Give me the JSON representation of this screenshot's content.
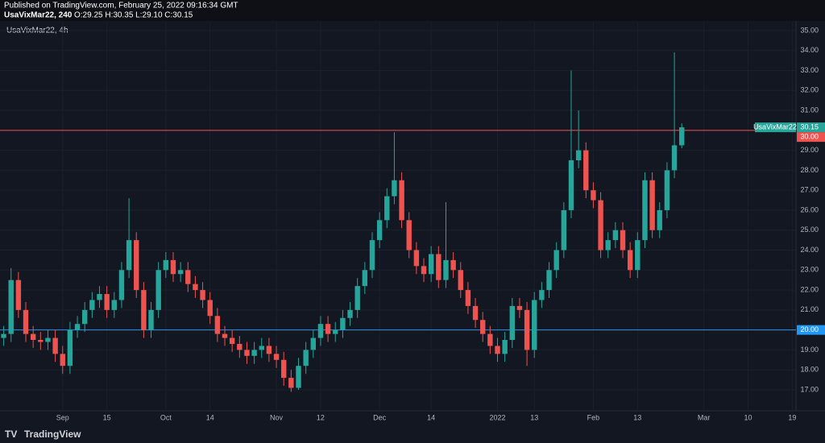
{
  "header": {
    "published": "Published on TradingView.com, February 25, 2022 09:16:34 GMT",
    "symbol": "UsaVixMar22, 240",
    "ohlc": "O:29.25 H:30.35 L:29.10 C:30.15"
  },
  "brand": "TradingView",
  "chart_data": {
    "type": "candlestick",
    "title": "UsaVixMar22, 4h",
    "categories": [
      null,
      null,
      null,
      null,
      null,
      null,
      null,
      null,
      "Sep",
      null,
      null,
      null,
      null,
      null,
      "15",
      null,
      null,
      null,
      null,
      null,
      null,
      null,
      "Oct",
      null,
      null,
      null,
      null,
      null,
      "14",
      null,
      null,
      null,
      null,
      null,
      null,
      null,
      null,
      "Nov",
      null,
      null,
      null,
      null,
      null,
      "12",
      null,
      null,
      null,
      null,
      null,
      null,
      null,
      "Dec",
      null,
      null,
      null,
      null,
      null,
      null,
      "14",
      null,
      null,
      null,
      null,
      null,
      null,
      null,
      null,
      "2022",
      null,
      null,
      null,
      null,
      "13",
      null,
      null,
      null,
      null,
      null,
      null,
      null,
      "Feb",
      null,
      null,
      null,
      null,
      null,
      "13",
      null,
      null,
      null,
      null,
      null,
      null,
      null,
      null,
      "Mar",
      null,
      null,
      null,
      null,
      null,
      "10",
      null,
      null,
      null,
      null,
      null,
      "19"
    ],
    "series": [
      {
        "name": "open",
        "values": [
          19.6,
          19.8,
          22.5,
          21.0,
          19.8,
          19.5,
          19.4,
          19.6,
          18.8,
          18.2,
          20.0,
          20.3,
          21.0,
          21.5,
          21.8,
          21.0,
          21.5,
          23.0,
          24.5,
          22.0,
          20.0,
          21.0,
          23.0,
          23.5,
          22.8,
          23.0,
          22.3,
          22.0,
          21.5,
          20.7,
          19.8,
          19.6,
          19.3,
          19.0,
          18.7,
          19.0,
          19.2,
          18.8,
          18.5,
          17.6,
          17.1,
          18.2,
          19.0,
          19.6,
          20.3,
          19.8,
          20.0,
          20.6,
          21.0,
          22.2,
          23.0,
          24.5,
          25.5,
          26.7,
          27.5,
          25.5,
          24.0,
          23.2,
          22.8,
          23.8,
          22.5,
          23.5,
          23.0,
          22.0,
          21.2,
          20.5,
          19.8,
          19.2,
          18.8,
          19.5,
          21.2,
          21.0,
          19.0,
          21.5,
          22.0,
          23.0,
          24.0,
          26.0,
          28.5,
          29.0,
          27.0,
          26.5,
          24.0,
          24.5,
          25.0,
          24.0,
          23.0,
          24.5,
          27.5,
          25.0,
          26.0,
          28.0,
          29.25,
          null,
          null,
          null,
          null,
          null,
          null,
          null,
          null,
          null,
          null,
          null,
          null,
          null,
          null,
          null
        ]
      },
      {
        "name": "high",
        "values": [
          20.2,
          23.1,
          22.9,
          21.4,
          20.2,
          19.9,
          20.0,
          20.0,
          19.2,
          20.4,
          20.7,
          21.4,
          21.9,
          22.2,
          22.2,
          21.9,
          23.4,
          26.6,
          24.9,
          22.4,
          21.4,
          23.4,
          23.9,
          23.9,
          23.4,
          23.4,
          22.7,
          22.4,
          21.9,
          21.1,
          20.2,
          20.0,
          19.7,
          19.4,
          19.4,
          19.6,
          19.6,
          19.2,
          18.9,
          18.0,
          18.6,
          19.4,
          20.0,
          20.7,
          20.7,
          20.4,
          21.0,
          21.4,
          22.6,
          23.4,
          24.9,
          25.9,
          27.1,
          29.9,
          27.9,
          25.9,
          24.4,
          23.6,
          24.2,
          24.2,
          26.4,
          23.9,
          23.4,
          22.4,
          21.6,
          20.9,
          20.2,
          19.6,
          19.9,
          21.6,
          21.6,
          21.4,
          21.9,
          22.4,
          23.4,
          24.4,
          26.4,
          33.0,
          31.0,
          29.4,
          27.4,
          26.9,
          24.9,
          25.4,
          25.4,
          24.4,
          24.9,
          27.9,
          27.9,
          26.4,
          28.4,
          33.9,
          30.35,
          null,
          null,
          null,
          null,
          null,
          null,
          null,
          null,
          null,
          null,
          null,
          null,
          null,
          null,
          null
        ]
      },
      {
        "name": "low",
        "values": [
          19.2,
          19.4,
          20.6,
          19.4,
          19.1,
          19.0,
          19.0,
          18.4,
          17.8,
          17.8,
          19.6,
          19.9,
          20.6,
          21.1,
          20.6,
          20.6,
          21.1,
          22.6,
          21.6,
          19.6,
          19.6,
          20.6,
          22.6,
          22.4,
          22.4,
          21.9,
          21.6,
          21.1,
          20.3,
          19.4,
          19.2,
          18.9,
          18.6,
          18.3,
          18.3,
          18.6,
          18.4,
          18.1,
          17.2,
          16.9,
          17.0,
          17.8,
          18.6,
          19.2,
          19.4,
          19.4,
          19.6,
          20.2,
          20.6,
          21.8,
          22.6,
          24.1,
          25.1,
          26.3,
          25.1,
          23.6,
          22.8,
          22.4,
          22.4,
          22.1,
          22.1,
          22.6,
          21.6,
          20.8,
          20.1,
          19.4,
          18.8,
          18.4,
          18.4,
          19.1,
          20.6,
          18.2,
          18.6,
          21.1,
          21.6,
          22.6,
          23.6,
          25.6,
          28.1,
          26.6,
          26.1,
          23.6,
          23.6,
          24.1,
          23.6,
          22.6,
          22.6,
          24.1,
          24.6,
          24.6,
          25.6,
          27.6,
          29.1,
          null,
          null,
          null,
          null,
          null,
          null,
          null,
          null,
          null,
          null,
          null,
          null,
          null,
          null,
          null
        ]
      },
      {
        "name": "close",
        "values": [
          19.8,
          22.5,
          21.0,
          19.8,
          19.5,
          19.4,
          19.6,
          18.8,
          18.2,
          20.0,
          20.3,
          21.0,
          21.5,
          21.8,
          21.0,
          21.5,
          23.0,
          24.5,
          22.0,
          20.0,
          21.0,
          23.0,
          23.5,
          22.8,
          23.0,
          22.3,
          22.0,
          21.5,
          20.7,
          19.8,
          19.6,
          19.3,
          19.0,
          18.7,
          19.0,
          19.2,
          18.8,
          18.5,
          17.6,
          17.1,
          18.2,
          19.0,
          19.6,
          20.3,
          19.8,
          20.0,
          20.6,
          21.0,
          22.2,
          23.0,
          24.5,
          25.5,
          26.7,
          27.5,
          25.5,
          24.0,
          23.2,
          22.8,
          23.8,
          22.5,
          23.5,
          23.0,
          22.0,
          21.2,
          20.5,
          19.8,
          19.2,
          18.8,
          19.5,
          21.2,
          21.0,
          19.0,
          21.5,
          22.0,
          23.0,
          24.0,
          26.0,
          28.5,
          29.0,
          27.0,
          26.5,
          24.0,
          24.5,
          25.0,
          24.0,
          23.0,
          24.5,
          27.5,
          25.0,
          26.0,
          28.0,
          29.25,
          30.15,
          null,
          null,
          null,
          null,
          null,
          null,
          null,
          null,
          null,
          null,
          null,
          null,
          null,
          null,
          null
        ]
      }
    ],
    "up_color": "#26a69a",
    "down_color": "#ef5350",
    "ylim": [
      15.95,
      35.4
    ],
    "yticks": [
      {
        "value": 17,
        "label": "17.00"
      },
      {
        "value": 18,
        "label": "18.00"
      },
      {
        "value": 19,
        "label": "19.00"
      },
      {
        "value": 20,
        "label": "20.00"
      },
      {
        "value": 21,
        "label": "21.00"
      },
      {
        "value": 22,
        "label": "22.00"
      },
      {
        "value": 23,
        "label": "23.00"
      },
      {
        "value": 24,
        "label": "24.00"
      },
      {
        "value": 25,
        "label": "25.00"
      },
      {
        "value": 26,
        "label": "26.00"
      },
      {
        "value": 27,
        "label": "27.00"
      },
      {
        "value": 28,
        "label": "28.00"
      },
      {
        "value": 29,
        "label": "29.00"
      },
      {
        "value": 30,
        "label": "30.00"
      },
      {
        "value": 31,
        "label": "31.00"
      },
      {
        "value": 32,
        "label": "32.00"
      },
      {
        "value": 33,
        "label": "33.00"
      },
      {
        "value": 34,
        "label": "34.00"
      },
      {
        "value": 35,
        "label": "35.00"
      }
    ],
    "grid": true,
    "hlines": [
      {
        "value": 30,
        "label": "30.00",
        "color": "#ef5350"
      },
      {
        "value": 20,
        "label": "20.00",
        "color": "#2196f3"
      }
    ],
    "last": {
      "name": "UsaVixMar22",
      "value": 30.15,
      "label": "30.15",
      "color": "#26a69a"
    }
  }
}
